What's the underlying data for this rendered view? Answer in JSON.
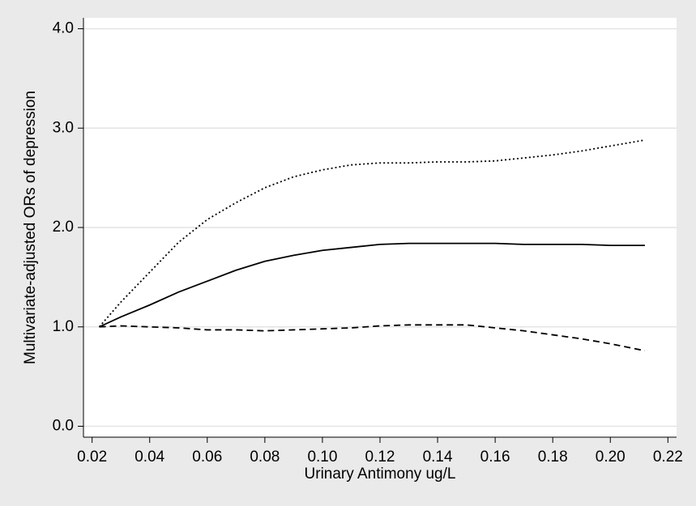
{
  "chart_data": {
    "type": "line",
    "xlabel": "Urinary Antimony ug/L",
    "ylabel": "Multivariate-adjusted ORs of depression",
    "x": [
      0.0225,
      0.03,
      0.04,
      0.05,
      0.06,
      0.07,
      0.08,
      0.09,
      0.1,
      0.11,
      0.12,
      0.13,
      0.14,
      0.15,
      0.16,
      0.17,
      0.18,
      0.19,
      0.2,
      0.212
    ],
    "series": [
      {
        "color": "#000000",
        "dash": "solid",
        "values": [
          1.0,
          1.1,
          1.22,
          1.35,
          1.46,
          1.57,
          1.66,
          1.72,
          1.77,
          1.8,
          1.83,
          1.84,
          1.84,
          1.84,
          1.84,
          1.83,
          1.83,
          1.83,
          1.82,
          1.82
        ]
      },
      {
        "color": "#000000",
        "dash": "dotted",
        "values": [
          1.0,
          1.25,
          1.55,
          1.85,
          2.08,
          2.25,
          2.4,
          2.51,
          2.58,
          2.63,
          2.65,
          2.65,
          2.66,
          2.66,
          2.67,
          2.7,
          2.73,
          2.77,
          2.82,
          2.88
        ]
      },
      {
        "color": "#000000",
        "dash": "dashed",
        "values": [
          1.0,
          1.01,
          1.0,
          0.99,
          0.97,
          0.97,
          0.96,
          0.97,
          0.98,
          0.99,
          1.01,
          1.02,
          1.02,
          1.02,
          0.99,
          0.96,
          0.92,
          0.88,
          0.83,
          0.76
        ]
      }
    ],
    "xlim": [
      0.017,
      0.223
    ],
    "xticks": [
      0.02,
      0.04,
      0.06,
      0.08,
      {
        "value": 0.1,
        "label": "0.10"
      },
      0.12,
      0.14,
      0.16,
      0.18,
      {
        "value": 0.2,
        "label": "0.20"
      },
      0.22
    ],
    "ylim": [
      -0.11,
      4.11
    ],
    "yticks": [
      {
        "value": 0,
        "label": "0.0"
      },
      {
        "value": 1,
        "label": "1.0"
      },
      {
        "value": 2,
        "label": "2.0"
      },
      {
        "value": 3,
        "label": "3.0"
      },
      {
        "value": 4,
        "label": "4.0"
      }
    ],
    "grid": true
  }
}
